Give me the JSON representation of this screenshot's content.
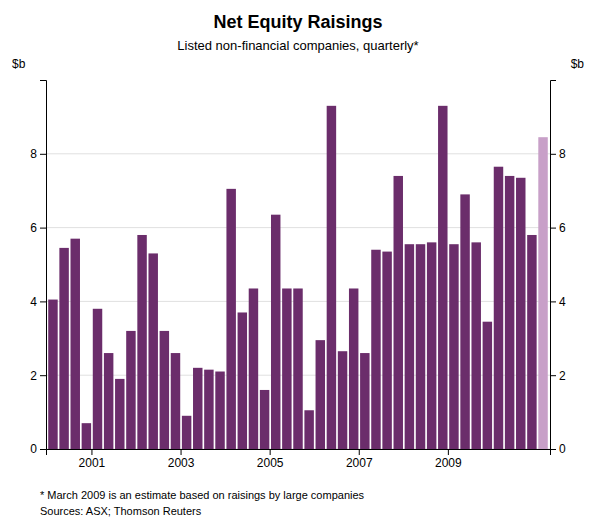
{
  "chart_data": {
    "type": "bar",
    "title": "Net Equity Raisings",
    "subtitle": "Listed non-financial companies, quarterly*",
    "ylabel": "$b",
    "y2label": "$b",
    "footnotes": [
      "*  March 2009 is an estimate based on raisings by large companies",
      "Sources: ASX; Thomson Reuters"
    ],
    "categories": [
      null,
      null,
      null,
      null,
      "2001",
      null,
      null,
      null,
      null,
      null,
      null,
      null,
      "2003",
      null,
      null,
      null,
      null,
      null,
      null,
      null,
      "2005",
      null,
      null,
      null,
      null,
      null,
      null,
      null,
      "2007",
      null,
      null,
      null,
      null,
      null,
      null,
      null,
      "2009",
      null,
      null,
      null,
      null,
      null,
      null,
      null,
      null
    ],
    "values": [
      4.05,
      5.45,
      5.7,
      0.7,
      3.8,
      2.6,
      1.9,
      3.2,
      5.8,
      5.3,
      3.2,
      2.6,
      0.9,
      2.2,
      2.15,
      2.1,
      7.05,
      3.7,
      4.35,
      1.6,
      6.35,
      4.35,
      4.35,
      1.05,
      2.95,
      9.3,
      2.65,
      4.35,
      2.6,
      5.4,
      5.35,
      7.4,
      5.55,
      5.55,
      5.6,
      9.3,
      5.55,
      6.9,
      5.6,
      3.45,
      7.65,
      7.4,
      7.35,
      5.8,
      8.45
    ],
    "colors": [
      "#6B2D6B",
      "#6B2D6B",
      "#6B2D6B",
      "#6B2D6B",
      "#6B2D6B",
      "#6B2D6B",
      "#6B2D6B",
      "#6B2D6B",
      "#6B2D6B",
      "#6B2D6B",
      "#6B2D6B",
      "#6B2D6B",
      "#6B2D6B",
      "#6B2D6B",
      "#6B2D6B",
      "#6B2D6B",
      "#6B2D6B",
      "#6B2D6B",
      "#6B2D6B",
      "#6B2D6B",
      "#6B2D6B",
      "#6B2D6B",
      "#6B2D6B",
      "#6B2D6B",
      "#6B2D6B",
      "#6B2D6B",
      "#6B2D6B",
      "#6B2D6B",
      "#6B2D6B",
      "#6B2D6B",
      "#6B2D6B",
      "#6B2D6B",
      "#6B2D6B",
      "#6B2D6B",
      "#6B2D6B",
      "#6B2D6B",
      "#6B2D6B",
      "#6B2D6B",
      "#6B2D6B",
      "#6B2D6B",
      "#6B2D6B",
      "#6B2D6B",
      "#6B2D6B",
      "#6B2D6B",
      "#C8A0C8"
    ],
    "ylim": [
      0,
      10
    ],
    "yticks": [
      0,
      2,
      4,
      6,
      8
    ],
    "y2lim": [
      0,
      10
    ],
    "y2ticks": [
      0,
      2,
      4,
      6,
      8
    ],
    "grid": true
  }
}
